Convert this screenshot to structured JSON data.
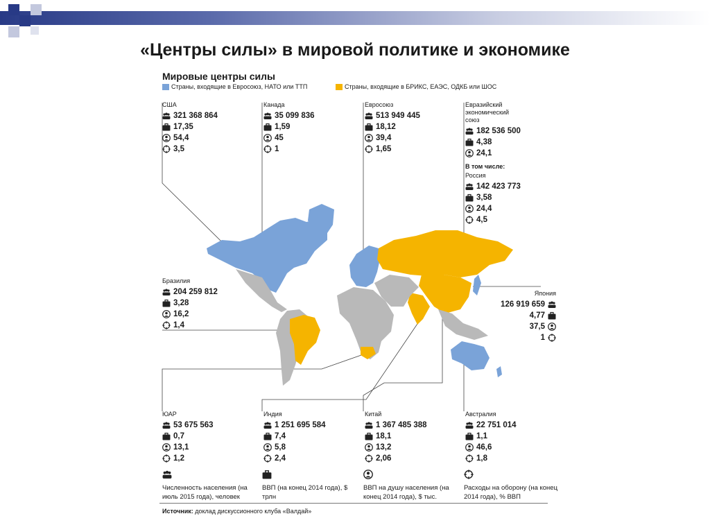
{
  "slide": {
    "title": "«Центры силы» в мировой политике и экономике"
  },
  "infographic": {
    "title": "Мировые центры силы",
    "legend": [
      {
        "label": "Страны, входящие в Евросоюз, НАТО или ТТП",
        "color": "#7aa3d8"
      },
      {
        "label": "Страны, входящие в БРИКС, ЕАЭС, ОДКБ или ШОС",
        "color": "#f5b400"
      }
    ],
    "blocks": {
      "usa": {
        "name": "США",
        "population": "321 368 864",
        "gdp": "17,35",
        "gdp_pc": "54,4",
        "defense": "3,5"
      },
      "canada": {
        "name": "Канада",
        "population": "35 099 836",
        "gdp": "1,59",
        "gdp_pc": "45",
        "defense": "1"
      },
      "eu": {
        "name": "Евросоюз",
        "population": "513 949 445",
        "gdp": "18,12",
        "gdp_pc": "39,4",
        "defense": "1,65"
      },
      "eaeu": {
        "name": "Евразийский экономический союз",
        "population": "182 536 500",
        "gdp": "4,38",
        "gdp_pc": "24,1",
        "sub_label": "В том числе:",
        "sub_name": "Россия",
        "sub_population": "142 423 773",
        "sub_gdp": "3,58",
        "sub_gdp_pc": "24,4",
        "sub_defense": "4,5"
      },
      "brazil": {
        "name": "Бразилия",
        "population": "204 259 812",
        "gdp": "3,28",
        "gdp_pc": "16,2",
        "defense": "1,4"
      },
      "japan": {
        "name": "Япония",
        "population": "126 919 659",
        "gdp": "4,77",
        "gdp_pc": "37,5",
        "defense": "1"
      },
      "sar": {
        "name": "ЮАР",
        "population": "53 675 563",
        "gdp": "0,7",
        "gdp_pc": "13,1",
        "defense": "1,2"
      },
      "india": {
        "name": "Индия",
        "population": "1 251 695 584",
        "gdp": "7,4",
        "gdp_pc": "5,8",
        "defense": "2,4"
      },
      "china": {
        "name": "Китай",
        "population": "1 367 485 388",
        "gdp": "18,1",
        "gdp_pc": "13,2",
        "defense": "2,06"
      },
      "australia": {
        "name": "Австралия",
        "population": "22 751 014",
        "gdp": "1,1",
        "gdp_pc": "46,6",
        "defense": "1,8"
      }
    },
    "footnotes": {
      "population": "Численность населения (на июль 2015 года), человек",
      "gdp": "ВВП (на конец 2014 года), $ трлн",
      "gdp_pc": "ВВП на душу населения (на конец 2014 года), $ тыс.",
      "defense": "Расходы на оборону (на конец 2014 года), % ВВП"
    },
    "source_label": "Источник:",
    "source_text": "доклад дискуссионного клуба «Валдай»",
    "icons": [
      "population-icon",
      "gdp-briefcase-icon",
      "gdp-per-capita-person-icon",
      "defense-crosshair-icon"
    ],
    "colors": {
      "west": "#7aa3d8",
      "east": "#f5b400",
      "other": "#b9b9b9"
    }
  }
}
